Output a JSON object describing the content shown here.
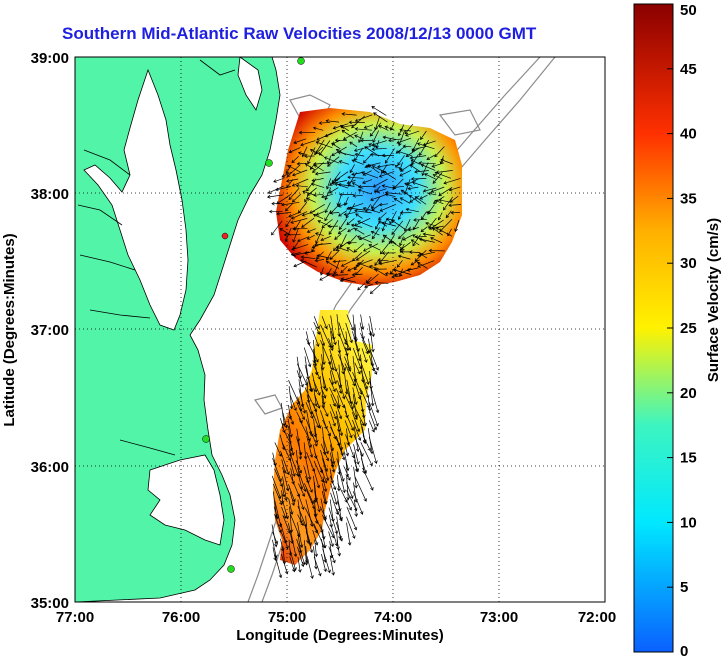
{
  "title": "Southern Mid-Atlantic Raw Velocities 2008/12/13 0000 GMT",
  "axes": {
    "xlabel": "Longitude (Degrees:Minutes)",
    "ylabel": "Latitude (Degrees:Minutes)",
    "x_ticks": [
      "77:00",
      "76:00",
      "75:00",
      "74:00",
      "73:00",
      "72:00"
    ],
    "y_ticks": [
      "39:00",
      "38:00",
      "37:00",
      "36:00",
      "35:00"
    ],
    "x_range": [
      -77,
      -72
    ],
    "y_range": [
      35,
      39
    ],
    "grid": "dotted"
  },
  "colorbar": {
    "label": "Surface Velocity (cm/s)",
    "ticks": [
      "50",
      "45",
      "40",
      "35",
      "30",
      "25",
      "20",
      "15",
      "10",
      "5",
      "0"
    ],
    "range": [
      0,
      50
    ],
    "colormap": "jet"
  },
  "colors": {
    "land": "#52f5a8",
    "water": "#ffffff",
    "title": "#1f1fe0",
    "coastline": "#000000",
    "bathymetry": "#8c8c8c",
    "station": "#22dd22",
    "station_alt": "#ee2222"
  }
}
